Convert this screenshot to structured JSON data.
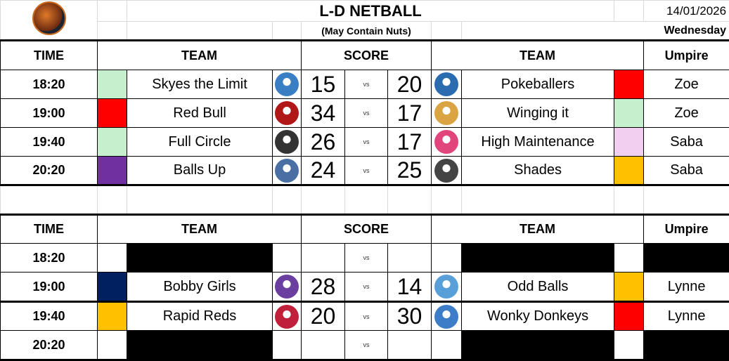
{
  "header": {
    "title": "L-D NETBALL",
    "subtitle": "(May Contain Nuts)",
    "date": "14/01/2026",
    "day": "Wednesday",
    "logo_icon": "basketball-player-logo"
  },
  "columns": {
    "time": "TIME",
    "team": "TEAM",
    "score": "SCORE",
    "team2": "TEAM",
    "umpire": "Umpire"
  },
  "vs_label": "vs",
  "tables": [
    {
      "rows": [
        {
          "time": "18:20",
          "color1": "#c6efce",
          "team1": "Skyes the Limit",
          "logo1": "#3a7fc4",
          "score1": "15",
          "score2": "20",
          "logo2": "#2b6cb0",
          "team2": "Pokeballers",
          "color2": "#ff0000",
          "umpire": "Zoe"
        },
        {
          "time": "19:00",
          "color1": "#ff0000",
          "team1": "Red Bull",
          "logo1": "#b01818",
          "score1": "34",
          "score2": "17",
          "logo2": "#d9a441",
          "team2": "Winging it",
          "color2": "#c6efce",
          "umpire": "Zoe"
        },
        {
          "time": "19:40",
          "color1": "#c6efce",
          "team1": "Full Circle",
          "logo1": "#333333",
          "score1": "26",
          "score2": "17",
          "logo2": "#e0457b",
          "team2": "High Maintenance",
          "color2": "#f2cef0",
          "umpire": "Saba"
        },
        {
          "time": "20:20",
          "color1": "#7030a0",
          "team1": "Balls Up",
          "logo1": "#4a6fa5",
          "score1": "24",
          "score2": "25",
          "logo2": "#444444",
          "team2": "Shades",
          "color2": "#ffc000",
          "umpire": "Saba"
        }
      ]
    },
    {
      "rows": [
        {
          "time": "18:20",
          "empty": true
        },
        {
          "time": "19:00",
          "color1": "#002060",
          "team1": "Bobby Girls",
          "logo1": "#6b3fa0",
          "score1": "28",
          "score2": "14",
          "logo2": "#5aa0d8",
          "team2": "Odd Balls",
          "color2": "#ffc000",
          "umpire": "Lynne"
        },
        {
          "time": "19:40",
          "color1": "#ffc000",
          "team1": "Rapid Reds",
          "logo1": "#c0203a",
          "score1": "20",
          "score2": "30",
          "logo2": "#3d7dc8",
          "team2": "Wonky Donkeys",
          "color2": "#ff0000",
          "umpire": "Lynne"
        },
        {
          "time": "20:20",
          "empty": true
        }
      ]
    }
  ]
}
